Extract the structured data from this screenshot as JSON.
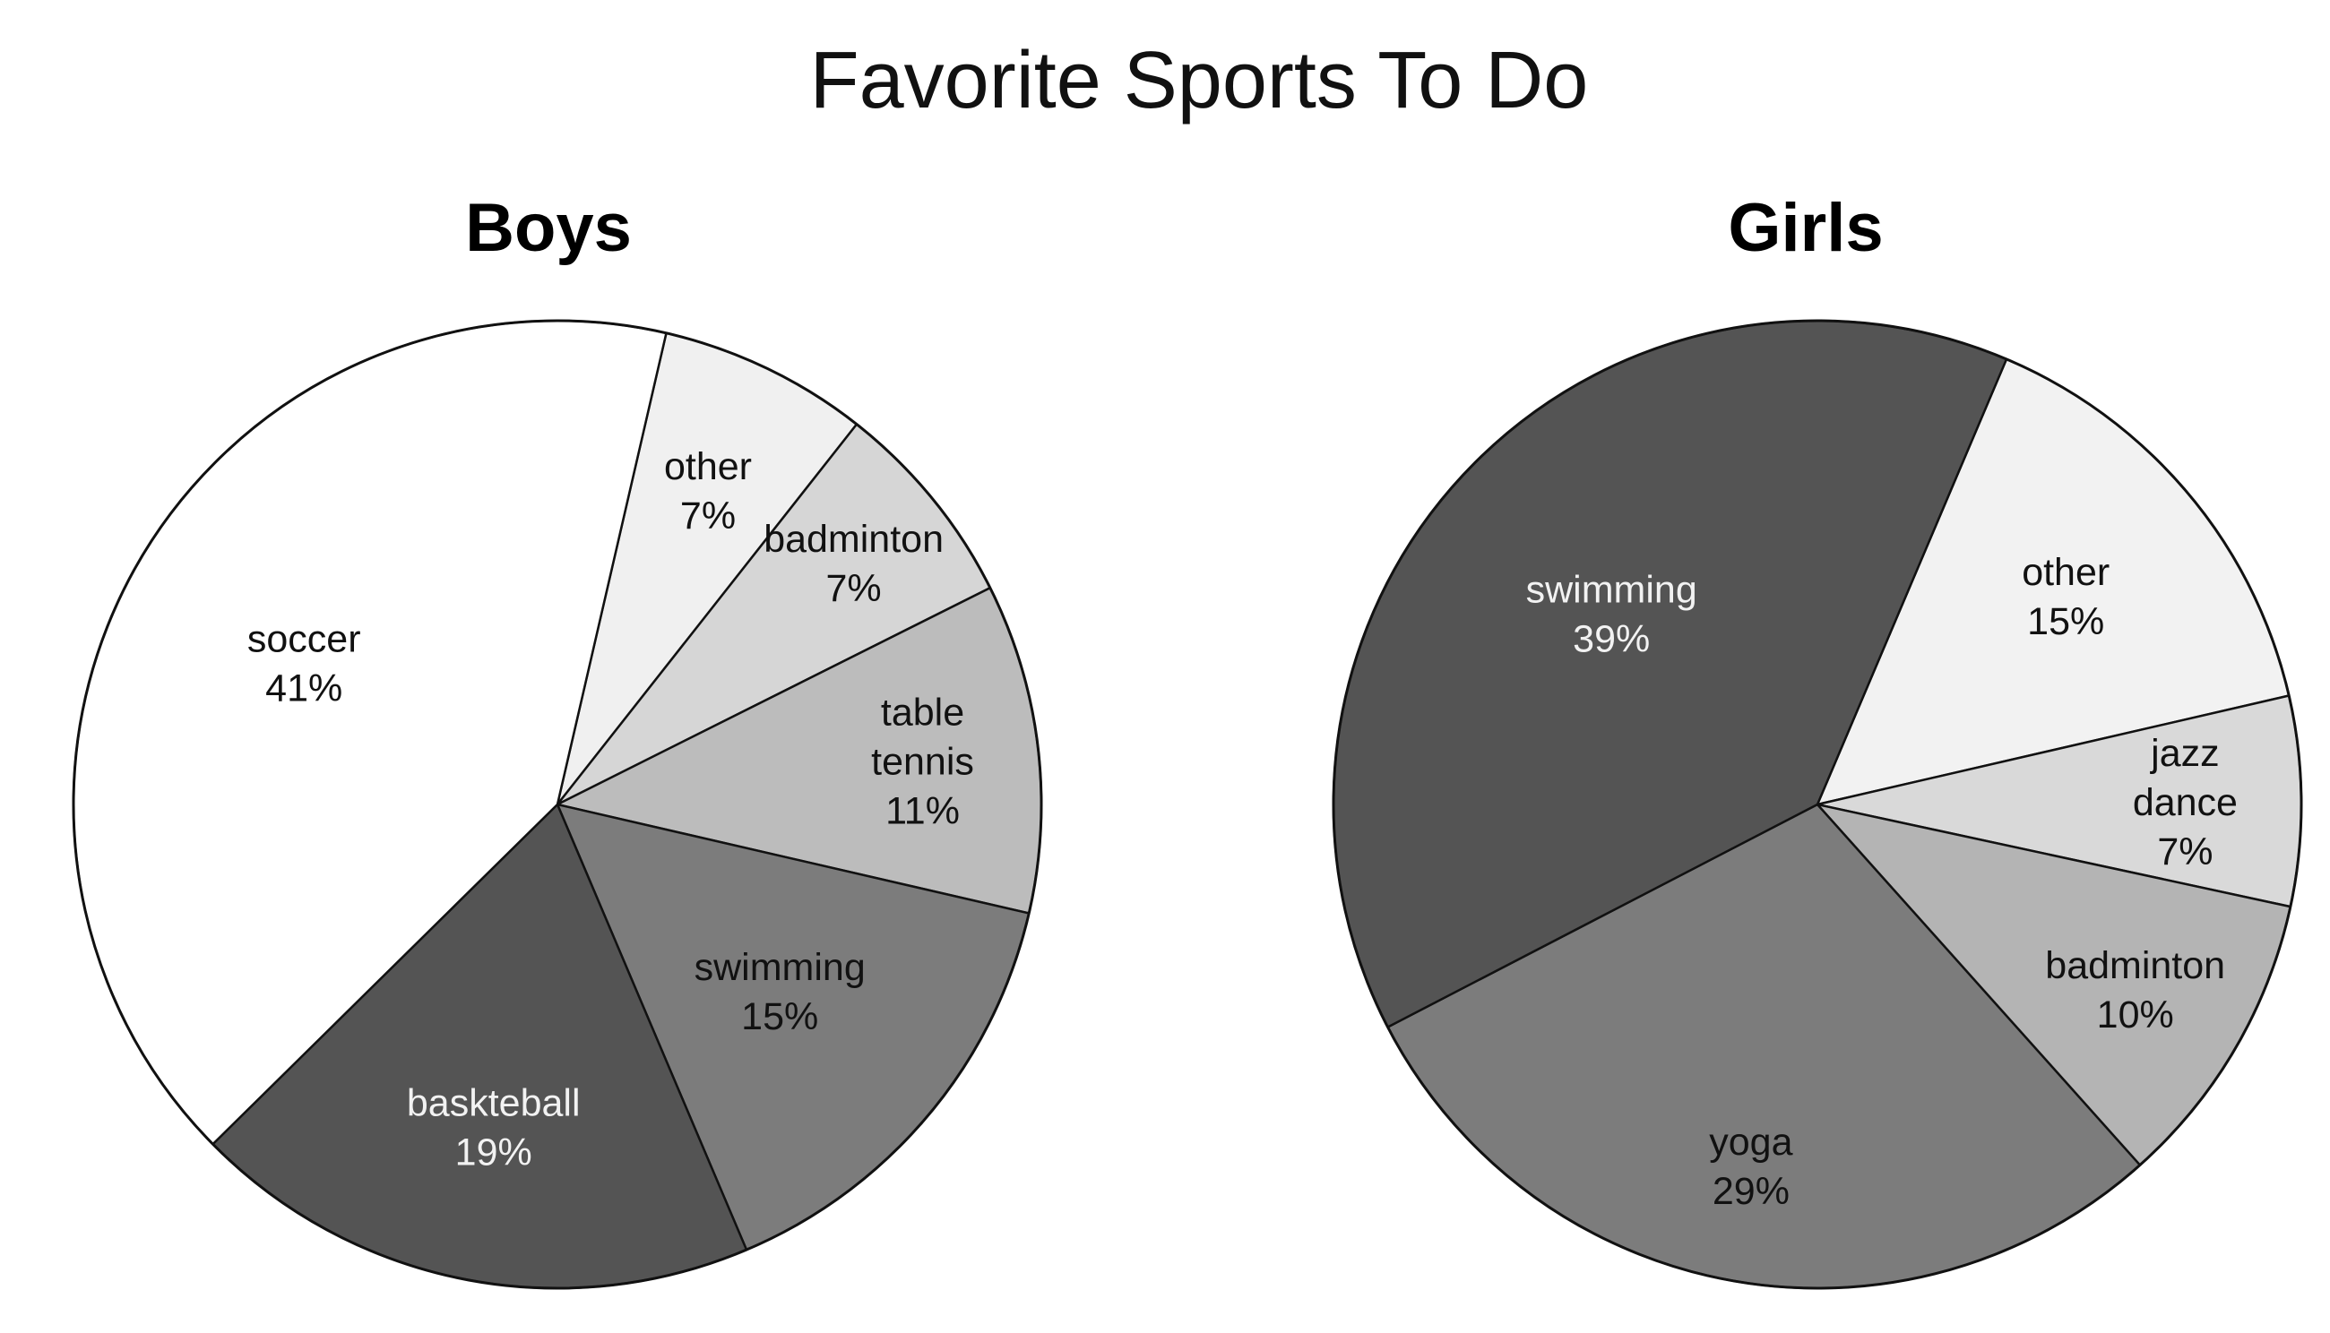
{
  "title": "Favorite Sports To Do",
  "chart_data": [
    {
      "type": "pie",
      "title": "Boys",
      "start_angle_deg": 77,
      "slices": [
        {
          "label": "other",
          "value": 7,
          "color": "#f0f0f0",
          "text_color": "#111111"
        },
        {
          "label": "badminton",
          "value": 7,
          "color": "#d6d6d6",
          "text_color": "#111111"
        },
        {
          "label": "table tennis",
          "value": 11,
          "color": "#bcbcbc",
          "text_color": "#111111"
        },
        {
          "label": "swimming",
          "value": 15,
          "color": "#7c7c7c",
          "text_color": "#111111"
        },
        {
          "label": "baskteball",
          "value": 19,
          "color": "#545454",
          "text_color": "#f2f2f2"
        },
        {
          "label": "soccer",
          "value": 41,
          "color": "#ffffff",
          "text_color": "#111111"
        }
      ]
    },
    {
      "type": "pie",
      "title": "Girls",
      "start_angle_deg": 67,
      "slices": [
        {
          "label": "other",
          "value": 15,
          "color": "#f2f2f2",
          "text_color": "#111111"
        },
        {
          "label": "jazz dance",
          "value": 7,
          "color": "#d9d9d9",
          "text_color": "#111111"
        },
        {
          "label": "badminton",
          "value": 10,
          "color": "#b4b4b4",
          "text_color": "#111111"
        },
        {
          "label": "yoga",
          "value": 29,
          "color": "#7c7c7c",
          "text_color": "#111111"
        },
        {
          "label": "swimming",
          "value": 39,
          "color": "#545454",
          "text_color": "#f2f2f2"
        }
      ]
    }
  ]
}
